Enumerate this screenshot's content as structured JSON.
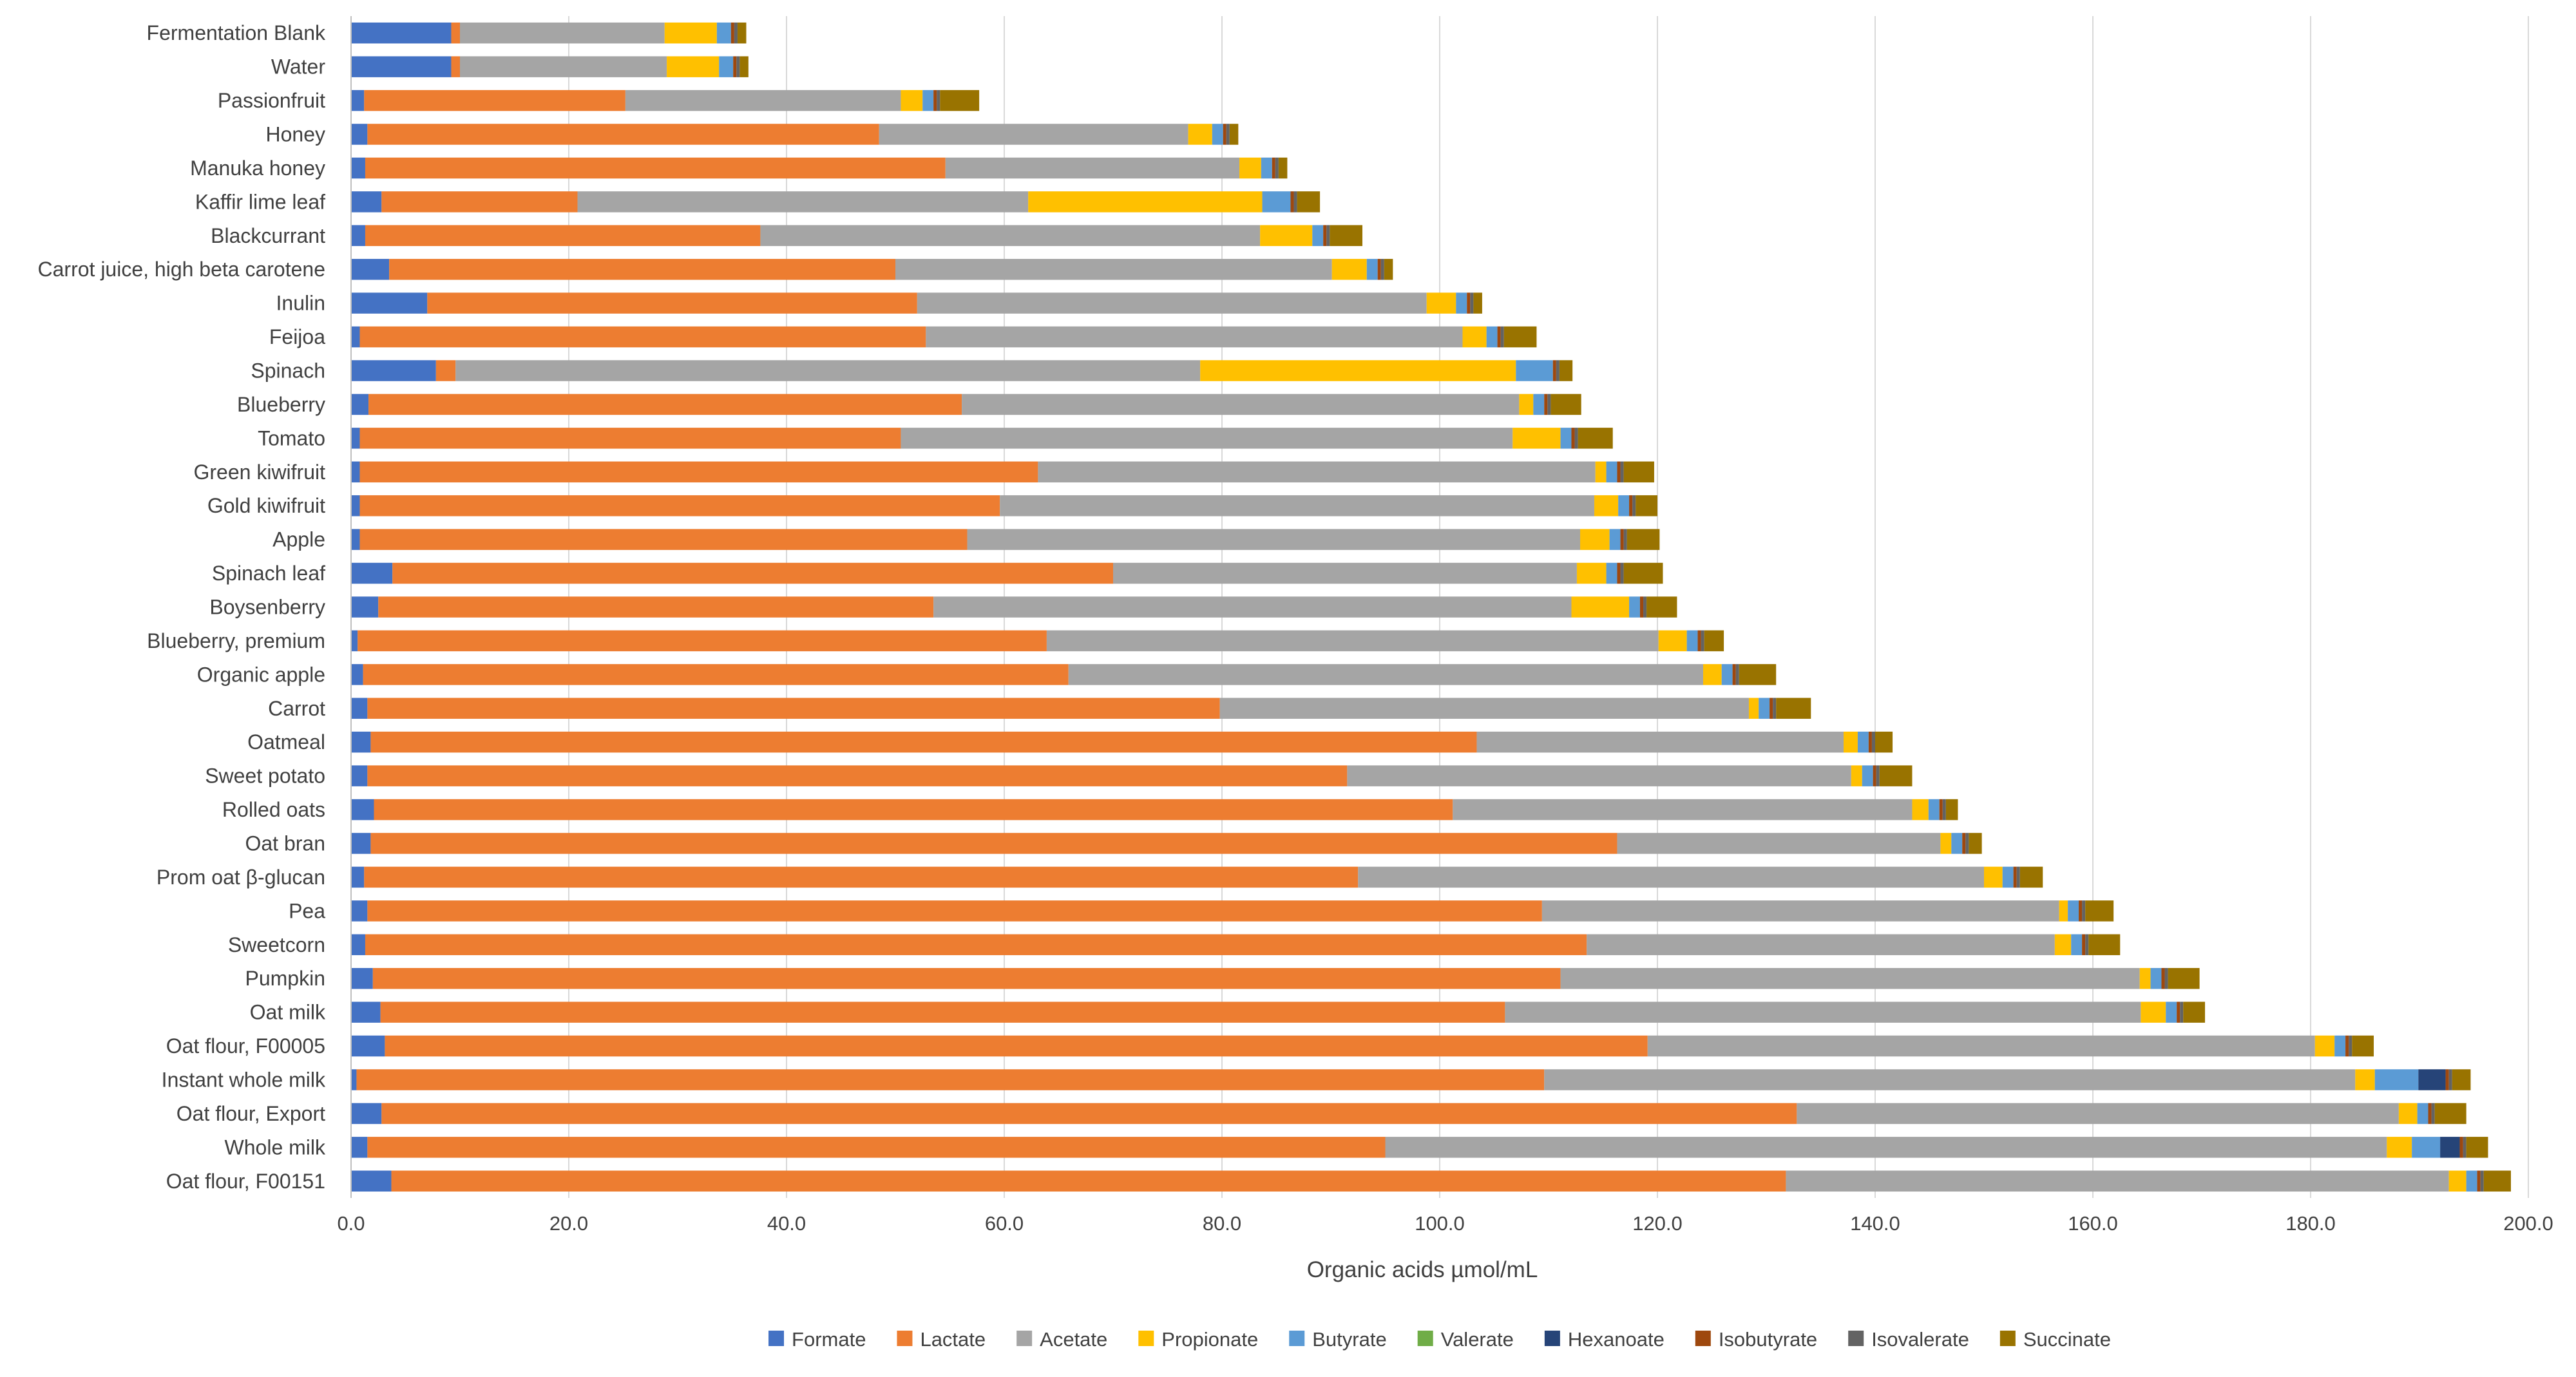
{
  "chart_data": {
    "type": "bar",
    "orientation": "horizontal",
    "stacked": true,
    "title": "",
    "xlabel": "Organic acids µmol/mL",
    "ylabel": "",
    "xlim": [
      0,
      200
    ],
    "xticks": [
      "0.0",
      "20.0",
      "40.0",
      "60.0",
      "80.0",
      "100.0",
      "120.0",
      "140.0",
      "160.0",
      "180.0",
      "200.0"
    ],
    "grid": "vertical",
    "legend_position": "bottom",
    "categories": [
      "Fermentation Blank",
      "Water",
      "Passionfruit",
      "Honey",
      "Manuka honey",
      "Kaffir lime leaf",
      "Blackcurrant",
      "Carrot juice, high beta carotene",
      "Inulin",
      "Feijoa",
      "Spinach",
      "Blueberry",
      "Tomato",
      "Green kiwifruit",
      "Gold kiwifruit",
      "Apple",
      "Spinach leaf",
      "Boysenberry",
      "Blueberry, premium",
      "Organic apple",
      "Carrot",
      "Oatmeal",
      "Sweet potato",
      "Rolled oats",
      "Oat bran",
      "Prom oat β-glucan",
      "Pea",
      "Sweetcorn",
      "Pumpkin",
      "Oat milk",
      "Oat flour, F00005",
      "Instant whole milk",
      "Oat flour, Export",
      "Whole milk",
      "Oat flour, F00151"
    ],
    "series": [
      {
        "name": "Formate",
        "color": "#4472c4",
        "values": [
          9.2,
          9.2,
          1.2,
          1.5,
          1.3,
          2.8,
          1.3,
          3.5,
          7.0,
          0.8,
          7.8,
          1.6,
          0.8,
          0.8,
          0.8,
          0.8,
          3.8,
          2.5,
          0.6,
          1.1,
          1.5,
          1.8,
          1.5,
          2.1,
          1.8,
          1.2,
          1.5,
          1.3,
          2.0,
          2.7,
          3.1,
          0.5,
          2.8,
          1.5,
          3.7
        ]
      },
      {
        "name": "Lactate",
        "color": "#ed7d31",
        "values": [
          0.8,
          0.8,
          24.0,
          47.0,
          53.3,
          18.0,
          36.3,
          46.5,
          45.0,
          52.0,
          1.8,
          54.5,
          49.7,
          62.3,
          58.8,
          55.8,
          66.2,
          51.0,
          63.3,
          64.8,
          78.3,
          101.6,
          90.0,
          99.1,
          114.5,
          91.3,
          107.9,
          112.2,
          109.1,
          103.3,
          116.0,
          109.1,
          130.0,
          93.5,
          128.1
        ]
      },
      {
        "name": "Acetate",
        "color": "#a5a5a5",
        "values": [
          18.8,
          19.0,
          25.3,
          28.4,
          27.0,
          41.4,
          45.9,
          40.1,
          46.8,
          49.3,
          68.4,
          51.2,
          56.2,
          51.2,
          54.6,
          56.3,
          42.6,
          58.6,
          56.2,
          58.3,
          48.6,
          33.7,
          46.3,
          42.2,
          29.7,
          57.5,
          47.5,
          43.0,
          53.2,
          58.4,
          61.3,
          74.5,
          55.3,
          92.0,
          60.9
        ]
      },
      {
        "name": "Propionate",
        "color": "#ffc000",
        "values": [
          4.8,
          4.8,
          2.0,
          2.2,
          2.0,
          21.5,
          4.8,
          3.2,
          2.7,
          2.2,
          29.0,
          1.3,
          4.4,
          1.0,
          2.2,
          2.7,
          2.7,
          5.3,
          2.6,
          1.7,
          0.9,
          1.3,
          1.0,
          1.5,
          1.0,
          1.7,
          0.8,
          1.5,
          1.0,
          2.3,
          1.8,
          1.8,
          1.7,
          2.3,
          1.6
        ]
      },
      {
        "name": "Butyrate",
        "color": "#5b9bd5",
        "values": [
          1.3,
          1.3,
          1.0,
          1.0,
          1.0,
          2.6,
          1.0,
          1.0,
          1.0,
          1.0,
          3.4,
          1.0,
          1.0,
          1.0,
          1.0,
          1.0,
          1.0,
          1.0,
          1.0,
          1.0,
          1.0,
          1.0,
          1.0,
          1.0,
          1.0,
          1.0,
          1.0,
          1.0,
          1.0,
          1.0,
          1.0,
          4.0,
          1.0,
          2.6,
          1.0
        ]
      },
      {
        "name": "Valerate",
        "color": "#70ad47",
        "values": [
          0,
          0,
          0,
          0,
          0,
          0,
          0,
          0,
          0,
          0,
          0,
          0,
          0,
          0,
          0,
          0,
          0,
          0,
          0,
          0,
          0,
          0,
          0,
          0,
          0,
          0,
          0,
          0,
          0,
          0,
          0,
          0,
          0,
          0,
          0
        ]
      },
      {
        "name": "Hexanoate",
        "color": "#264478",
        "values": [
          0,
          0,
          0,
          0,
          0,
          0,
          0,
          0,
          0,
          0,
          0,
          0,
          0,
          0,
          0,
          0,
          0,
          0,
          0,
          0,
          0,
          0,
          0,
          0,
          0,
          0,
          0,
          0,
          0,
          0,
          0,
          2.5,
          0,
          1.8,
          0
        ]
      },
      {
        "name": "Isobutyrate",
        "color": "#9e480e",
        "values": [
          0.3,
          0.3,
          0.3,
          0.3,
          0.3,
          0.3,
          0.3,
          0.3,
          0.3,
          0.3,
          0.3,
          0.3,
          0.3,
          0.3,
          0.3,
          0.3,
          0.3,
          0.3,
          0.3,
          0.3,
          0.3,
          0.3,
          0.3,
          0.3,
          0.3,
          0.3,
          0.3,
          0.3,
          0.3,
          0.3,
          0.3,
          0.3,
          0.3,
          0.3,
          0.3
        ]
      },
      {
        "name": "Isovalerate",
        "color": "#636363",
        "values": [
          0.3,
          0.3,
          0.3,
          0.3,
          0.3,
          0.3,
          0.3,
          0.3,
          0.3,
          0.3,
          0.3,
          0.3,
          0.3,
          0.3,
          0.3,
          0.3,
          0.3,
          0.3,
          0.3,
          0.3,
          0.3,
          0.3,
          0.3,
          0.3,
          0.3,
          0.3,
          0.3,
          0.3,
          0.3,
          0.3,
          0.3,
          0.3,
          0.3,
          0.3,
          0.3
        ]
      },
      {
        "name": "Succinate",
        "color": "#997300",
        "values": [
          0.8,
          0.8,
          3.6,
          0.8,
          0.8,
          2.1,
          3.0,
          0.8,
          0.8,
          3.0,
          1.2,
          2.8,
          3.2,
          2.8,
          2.0,
          3.0,
          3.6,
          2.8,
          1.8,
          3.4,
          3.2,
          1.6,
          3.0,
          1.1,
          1.2,
          2.1,
          2.6,
          2.9,
          2.9,
          2.0,
          2.0,
          1.7,
          2.9,
          2.0,
          2.5
        ]
      }
    ]
  }
}
